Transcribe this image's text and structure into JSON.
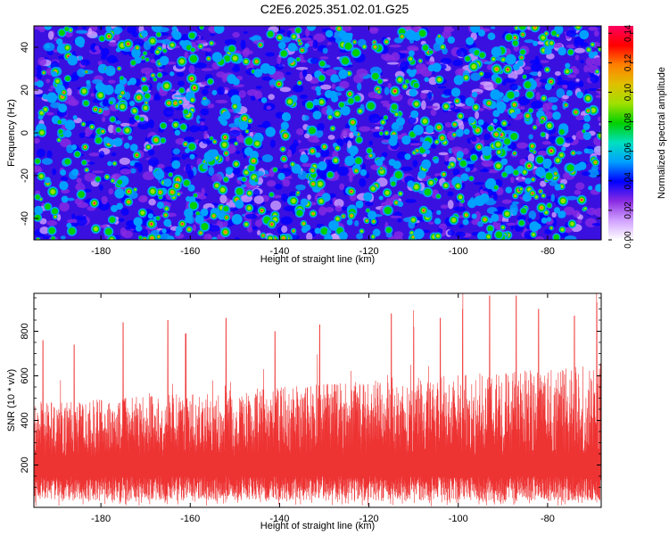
{
  "chart_data": [
    {
      "type": "heatmap",
      "title": "C2E6.2025.351.02.01.G25",
      "xlabel": "Height of straight line (km)",
      "ylabel": "Frequency (Hz)",
      "xlim": [
        -195,
        -68
      ],
      "ylim": [
        -50,
        50
      ],
      "x_ticks": [
        -180,
        -160,
        -140,
        -120,
        -100,
        -80
      ],
      "y_ticks": [
        -40,
        -20,
        0,
        20,
        40
      ],
      "colorbar": {
        "label": "Normalized spectral amplitude",
        "range": [
          0,
          0.145
        ],
        "ticks": [
          "0.00",
          "0.02",
          "0.04",
          "0.06",
          "0.08",
          "0.10",
          "0.12",
          "0.14"
        ],
        "colormap": [
          "#ffffff",
          "#d0a0ff",
          "#8a2be2",
          "#0000ff",
          "#00a0ff",
          "#00e0c0",
          "#00d000",
          "#a0e000",
          "#e0c000",
          "#ff8000",
          "#ff0000",
          "#ff0060"
        ]
      }
    },
    {
      "type": "line",
      "xlabel": "Height of straight line (km)",
      "ylabel": "SNR (10 * v/v)",
      "xlim": [
        -195,
        -68
      ],
      "ylim": [
        10,
        970
      ],
      "x_ticks": [
        -180,
        -160,
        -140,
        -120,
        -100,
        -80
      ],
      "y_ticks": [
        200,
        400,
        600,
        800
      ],
      "series": [
        {
          "name": "SNR",
          "color": "#ee3333",
          "x_range": [
            -195,
            -68
          ],
          "baseline_low": [
            40,
            90
          ],
          "typical_high": [
            400,
            650
          ],
          "peaks": [
            [
              -193,
              760
            ],
            [
              -186,
              740
            ],
            [
              -175,
              840
            ],
            [
              -165,
              850
            ],
            [
              -161,
              790
            ],
            [
              -152,
              860
            ],
            [
              -141,
              800
            ],
            [
              -131,
              830
            ],
            [
              -115,
              880
            ],
            [
              -110,
              820
            ],
            [
              -104,
              860
            ],
            [
              -99,
              900
            ],
            [
              -93,
              960
            ],
            [
              -87,
              960
            ],
            [
              -82,
              900
            ],
            [
              -74,
              870
            ],
            [
              -69,
              930
            ]
          ]
        }
      ]
    }
  ]
}
